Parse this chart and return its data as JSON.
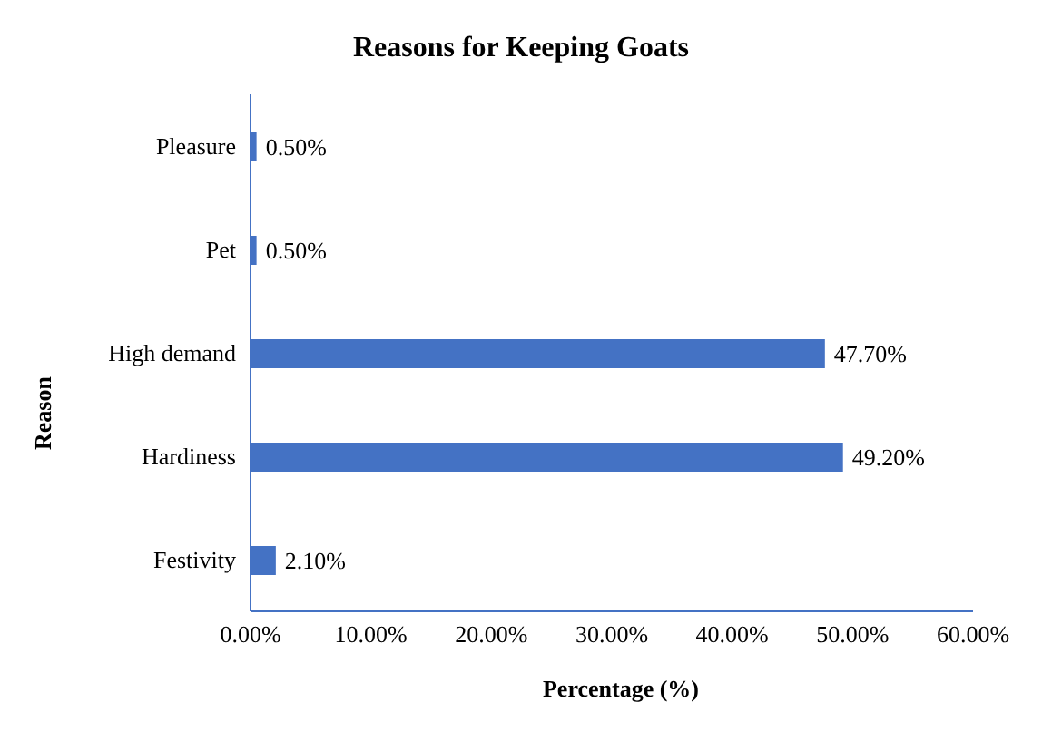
{
  "chart_data": {
    "type": "bar",
    "orientation": "horizontal",
    "title": "Reasons for Keeping Goats",
    "xlabel": "Percentage (%)",
    "ylabel": "Reason",
    "categories": [
      "Pleasure",
      "Pet",
      "High demand",
      "Hardiness",
      "Festivity"
    ],
    "values": [
      0.5,
      0.5,
      47.7,
      49.2,
      2.1
    ],
    "value_labels": [
      "0.50%",
      "0.50%",
      "47.70%",
      "49.20%",
      "2.10%"
    ],
    "color": "#4472c4",
    "xlim": [
      0,
      60
    ],
    "xticks": [
      {
        "value": 0,
        "label": "0.00%"
      },
      {
        "value": 10,
        "label": "10.00%"
      },
      {
        "value": 20,
        "label": "20.00%"
      },
      {
        "value": 30,
        "label": "30.00%"
      },
      {
        "value": 40,
        "label": "40.00%"
      },
      {
        "value": 50,
        "label": "50.00%"
      },
      {
        "value": 60,
        "label": "60.00%"
      }
    ],
    "grid": false,
    "legend": false
  }
}
